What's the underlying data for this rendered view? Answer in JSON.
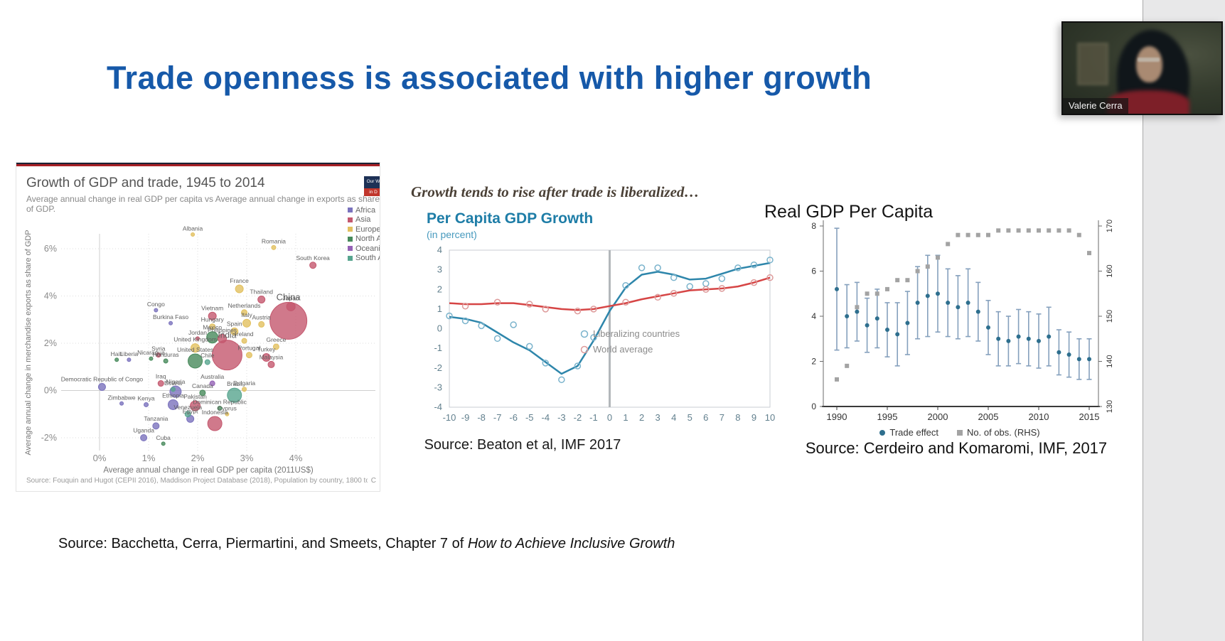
{
  "window": {
    "bg": "#ffffff",
    "side_panel_bg": "#e8e8e9",
    "side_panel_border": "#a9a9a9"
  },
  "slide": {
    "title": "Trade openness is associated with higher growth",
    "title_color": "#1659a9",
    "footer_source_prefix": "Source: Bacchetta, Cerra, Piermartini, and Smeets, Chapter 7 of ",
    "footer_source_book": "How to Achieve Inclusive Growth"
  },
  "webcam": {
    "label": "Valerie Cerra"
  },
  "chart_data": [
    {
      "type": "scatter",
      "title": "Growth of GDP and trade, 1945 to 2014",
      "subtitle": "Average annual change in real GDP per capita vs Average annual change in exports as share of GDP.",
      "xlabel": "Average annual change in real GDP per capita (2011US$)",
      "ylabel": "Average annual change in merchandise exports as share of GDP",
      "source": "Source: Fouquin and Hugot (CEPII 2016), Maddison Project Database (2018), Population by country, 1800 to 2100 (Gapminder & UN)",
      "source_right": "C",
      "xlim": [
        -0.85,
        4.95
      ],
      "ylim": [
        -2.55,
        6.85
      ],
      "x_ticks": [
        {
          "v": 0,
          "label": "0%"
        },
        {
          "v": 1,
          "label": "1%"
        },
        {
          "v": 2,
          "label": "2%"
        },
        {
          "v": 3,
          "label": "3%"
        },
        {
          "v": 4,
          "label": "4%"
        }
      ],
      "y_ticks": [
        {
          "v": -2,
          "label": "-2%"
        },
        {
          "v": 0,
          "label": "0%"
        },
        {
          "v": 2,
          "label": "2%"
        },
        {
          "v": 4,
          "label": "4%"
        },
        {
          "v": 6,
          "label": "6%"
        }
      ],
      "region_colors": {
        "africa": "#7a72bd",
        "asia": "#c4586e",
        "europe": "#e2c05f",
        "northamerica": "#478a5b",
        "oceania": "#9461b5",
        "southamerica": "#57a58f"
      },
      "legend": [
        {
          "label": "Africa",
          "region": "africa"
        },
        {
          "label": "Asia",
          "region": "asia"
        },
        {
          "label": "Europe",
          "region": "europe"
        },
        {
          "label": "North Ame",
          "region": "northamerica"
        },
        {
          "label": "Oceania",
          "region": "oceania"
        },
        {
          "label": "South Am",
          "region": "southamerica"
        }
      ],
      "logo": {
        "top": "Our W",
        "bottom": "in D",
        "top_bg": "#1d3156",
        "bottom_bg": "#c0362c"
      },
      "points_schema": [
        "label",
        "x_pct",
        "y_pct",
        "radius_px",
        "region",
        "label_font_px_optional"
      ],
      "points": [
        [
          "Albania",
          1.9,
          6.6,
          2.5,
          "europe"
        ],
        [
          "Romania",
          3.55,
          6.05,
          3,
          "europe"
        ],
        [
          "South Korea",
          4.35,
          5.3,
          4.5,
          "asia"
        ],
        [
          "France",
          2.85,
          4.3,
          5.5,
          "europe"
        ],
        [
          "Thailand",
          3.3,
          3.85,
          5,
          "asia"
        ],
        [
          "Japan",
          3.9,
          3.55,
          6,
          "asia"
        ],
        [
          "China",
          3.85,
          2.95,
          26,
          "asia",
          13
        ],
        [
          "Congo",
          1.15,
          3.4,
          2.5,
          "africa"
        ],
        [
          "Netherlands",
          2.95,
          3.3,
          4,
          "europe"
        ],
        [
          "Vietnam",
          2.3,
          3.15,
          5.5,
          "asia"
        ],
        [
          "Burkina Faso",
          1.45,
          2.85,
          2.5,
          "africa"
        ],
        [
          "Hungary",
          2.3,
          2.7,
          4,
          "europe"
        ],
        [
          "Italy",
          3.0,
          2.85,
          5.5,
          "europe"
        ],
        [
          "Austria",
          3.3,
          2.8,
          4,
          "europe"
        ],
        [
          "Spain",
          2.75,
          2.5,
          5,
          "europe"
        ],
        [
          "Mexico",
          2.3,
          2.25,
          8,
          "northamerica"
        ],
        [
          "Jordan",
          2.0,
          2.2,
          2.5,
          "asia"
        ],
        [
          "Philippines",
          2.5,
          2.2,
          6,
          "asia"
        ],
        [
          "Ireland",
          2.95,
          2.1,
          3.5,
          "europe"
        ],
        [
          "United Kingdom",
          1.95,
          1.8,
          6,
          "europe"
        ],
        [
          "India",
          2.6,
          1.5,
          21,
          "asia",
          12
        ],
        [
          "Greece",
          3.6,
          1.85,
          4,
          "europe"
        ],
        [
          "Portugal",
          3.05,
          1.5,
          4,
          "europe"
        ],
        [
          "Turkey",
          3.4,
          1.4,
          5.5,
          "asia"
        ],
        [
          "Malaysia",
          3.5,
          1.1,
          4.5,
          "asia"
        ],
        [
          "Syria",
          1.2,
          1.5,
          3,
          "asia"
        ],
        [
          "Haiti",
          0.35,
          1.3,
          2.5,
          "northamerica"
        ],
        [
          "Liberia",
          0.6,
          1.3,
          2.5,
          "africa"
        ],
        [
          "Nicaragua",
          1.05,
          1.35,
          2.5,
          "northamerica"
        ],
        [
          "Honduras",
          1.35,
          1.25,
          3,
          "northamerica"
        ],
        [
          "United States",
          1.95,
          1.25,
          10,
          "northamerica"
        ],
        [
          "Chile",
          2.2,
          1.2,
          3.5,
          "southamerica"
        ],
        [
          "Democratic Republic of Congo",
          0.05,
          0.15,
          5,
          "africa"
        ],
        [
          "Iraq",
          1.25,
          0.3,
          4,
          "asia"
        ],
        [
          "Bolivia",
          1.5,
          0.05,
          3,
          "southamerica"
        ],
        [
          "Australia",
          2.3,
          0.3,
          3.5,
          "oceania"
        ],
        [
          "Nigeria",
          1.55,
          -0.05,
          8,
          "africa"
        ],
        [
          "Canada",
          2.1,
          -0.1,
          4,
          "northamerica"
        ],
        [
          "Brazil",
          2.75,
          -0.2,
          10,
          "southamerica"
        ],
        [
          "Bulgaria",
          2.95,
          0.05,
          3,
          "europe"
        ],
        [
          "Zimbabwe",
          0.45,
          -0.55,
          2.5,
          "africa"
        ],
        [
          "Kenya",
          0.95,
          -0.6,
          3,
          "africa"
        ],
        [
          "Ethiopia",
          1.5,
          -0.6,
          7,
          "africa"
        ],
        [
          "Pakistan",
          1.95,
          -0.65,
          7,
          "asia"
        ],
        [
          "Dominican Republic",
          2.45,
          -0.75,
          3,
          "northamerica"
        ],
        [
          "Cyprus",
          2.6,
          -1.0,
          2.5,
          "europe"
        ],
        [
          "Venezuela",
          1.8,
          -1.0,
          4,
          "southamerica"
        ],
        [
          "Egypt",
          1.85,
          -1.2,
          5,
          "africa"
        ],
        [
          "Indonesia",
          2.35,
          -1.4,
          10,
          "asia"
        ],
        [
          "Tanzania",
          1.15,
          -1.5,
          4.5,
          "africa"
        ],
        [
          "Uganda",
          0.9,
          -2.0,
          4.5,
          "africa"
        ],
        [
          "Cuba",
          1.3,
          -2.25,
          2.5,
          "northamerica"
        ]
      ]
    },
    {
      "type": "line",
      "eyebrow": "Growth tends to rise after trade is liberalized…",
      "title": "Per Capita GDP Growth",
      "subtitle": "(in percent)",
      "x_ticks": [
        -10,
        -9,
        -8,
        -7,
        -6,
        -5,
        -4,
        -3,
        -2,
        -1,
        0,
        1,
        2,
        3,
        4,
        5,
        6,
        7,
        8,
        9,
        10
      ],
      "y_ticks": [
        4,
        3,
        2,
        1,
        0,
        -1,
        -2,
        -3,
        -4
      ],
      "ylim": [
        -4,
        4
      ],
      "event_line_x": 0,
      "series": [
        {
          "name": "Liberalizing countries",
          "color": "#2e86ab",
          "marker_color": "#7ab3cc",
          "values": [
            0.6,
            0.5,
            0.3,
            -0.2,
            -0.7,
            -1.1,
            -1.7,
            -2.3,
            -1.9,
            -0.6,
            0.9,
            2.1,
            2.75,
            2.9,
            2.75,
            2.5,
            2.55,
            2.8,
            3.05,
            3.2,
            3.35
          ],
          "markers": [
            [
              -10,
              0.65
            ],
            [
              -9,
              0.4
            ],
            [
              -8,
              0.15
            ],
            [
              -7,
              -0.5
            ],
            [
              -6,
              0.2
            ],
            [
              -5,
              -0.9
            ],
            [
              -4,
              -1.75
            ],
            [
              -3,
              -2.6
            ],
            [
              -2,
              -1.9
            ],
            [
              -1,
              -0.45
            ],
            [
              1,
              2.2
            ],
            [
              2,
              3.1
            ],
            [
              3,
              3.1
            ],
            [
              4,
              2.6
            ],
            [
              5,
              2.15
            ],
            [
              6,
              2.3
            ],
            [
              7,
              2.55
            ],
            [
              8,
              3.1
            ],
            [
              9,
              3.25
            ],
            [
              10,
              3.5
            ]
          ]
        },
        {
          "name": "World average",
          "color": "#d64545",
          "marker_color": "#dd9a9a",
          "values": [
            1.3,
            1.25,
            1.25,
            1.3,
            1.3,
            1.2,
            1.1,
            1.0,
            0.95,
            1.0,
            1.15,
            1.3,
            1.5,
            1.65,
            1.8,
            1.95,
            2.0,
            2.05,
            2.15,
            2.35,
            2.6
          ],
          "markers": [
            [
              -9,
              1.15
            ],
            [
              -7,
              1.35
            ],
            [
              -5,
              1.25
            ],
            [
              -4,
              1.0
            ],
            [
              -2,
              0.9
            ],
            [
              -1,
              1.0
            ],
            [
              1,
              1.35
            ],
            [
              3,
              1.6
            ],
            [
              4,
              1.8
            ],
            [
              6,
              2.0
            ],
            [
              7,
              2.05
            ],
            [
              9,
              2.35
            ],
            [
              10,
              2.6
            ]
          ]
        }
      ],
      "legend_text_color": "#8c8c8c",
      "source": "Source: Beaton et al, IMF 2017"
    },
    {
      "type": "errorbar",
      "title": "Real GDP Per Capita",
      "years": [
        1990,
        1991,
        1992,
        1993,
        1994,
        1995,
        1996,
        1997,
        1998,
        1999,
        2000,
        2001,
        2002,
        2003,
        2004,
        2005,
        2006,
        2007,
        2008,
        2009,
        2010,
        2011,
        2012,
        2013,
        2014,
        2015
      ],
      "trade_effect": [
        5.2,
        4.0,
        4.2,
        3.6,
        3.9,
        3.4,
        3.2,
        3.7,
        4.6,
        4.9,
        5.0,
        4.6,
        4.4,
        4.6,
        4.2,
        3.5,
        3.0,
        2.9,
        3.1,
        3.0,
        2.9,
        3.1,
        2.4,
        2.3,
        2.1,
        2.1
      ],
      "err_half": [
        2.7,
        1.4,
        1.3,
        1.2,
        1.3,
        1.2,
        1.4,
        1.4,
        1.6,
        1.8,
        1.7,
        1.5,
        1.4,
        1.5,
        1.3,
        1.2,
        1.2,
        1.1,
        1.2,
        1.2,
        1.2,
        1.3,
        1.0,
        1.0,
        0.9,
        0.9
      ],
      "obs_rhs": [
        136,
        139,
        152,
        155,
        155,
        156,
        158,
        158,
        160,
        161,
        163,
        166,
        168,
        168,
        168,
        168,
        169,
        169,
        169,
        169,
        169,
        169,
        169,
        169,
        168,
        164
      ],
      "x_ticks": [
        1990,
        1995,
        2000,
        2005,
        2010,
        2015
      ],
      "left_ticks": [
        0,
        2,
        4,
        6,
        8
      ],
      "right_ticks": [
        130,
        140,
        150,
        160,
        170
      ],
      "ylim_left": [
        0,
        8.5
      ],
      "ylim_right": [
        128,
        172
      ],
      "colors": {
        "dot": "#2e6f8e",
        "bar": "#85a0bd",
        "obs": "#a3a3a3"
      },
      "legend": [
        {
          "label": "Trade effect",
          "marker": "dot",
          "color": "#2e6f8e"
        },
        {
          "label": "No. of obs. (RHS)",
          "marker": "square",
          "color": "#a3a3a3"
        }
      ],
      "source": "Source: Cerdeiro and Komaromi, IMF, 2017"
    }
  ]
}
